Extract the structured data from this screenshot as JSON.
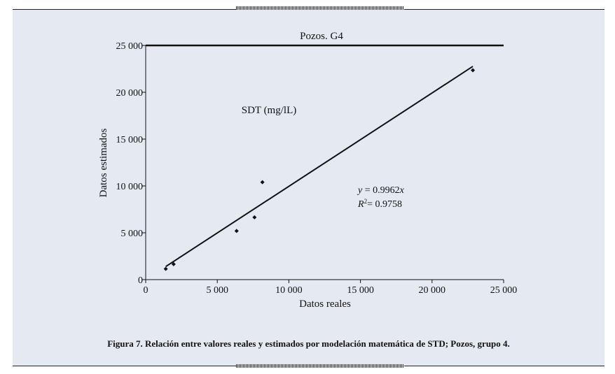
{
  "colors": {
    "panel_bg": "#e4e9f2",
    "ink": "#111111"
  },
  "caption": "Figura 7. Relación entre valores reales y estimados por modelación matemática de STD; Pozos, grupo 4.",
  "chart_data": {
    "type": "scatter",
    "title": "Pozos. G4",
    "subtitle": "SDT (mg/lL)",
    "xlabel": "Datos reales",
    "ylabel": "Datos estimados",
    "xlim": [
      0,
      25000
    ],
    "ylim": [
      0,
      25000
    ],
    "xticks": [
      0,
      5000,
      10000,
      15000,
      20000,
      25000
    ],
    "yticks": [
      0,
      5000,
      10000,
      15000,
      20000,
      25000
    ],
    "xtick_labels": [
      "0",
      "5 000",
      "10 000",
      "15 000",
      "20 000",
      "25 000"
    ],
    "ytick_labels": [
      "0",
      "5 000",
      "10 000",
      "15 000",
      "20 000",
      "25 000"
    ],
    "grid": false,
    "series": [
      {
        "name": "SDT",
        "x": [
          1400,
          1950,
          6350,
          7600,
          8150,
          22850
        ],
        "y": [
          1150,
          1650,
          5200,
          6650,
          10400,
          22350
        ]
      }
    ],
    "trendline": {
      "slope": 0.9962,
      "x_range": [
        1400,
        22850
      ]
    },
    "annotation": {
      "equation": "= 0.9962",
      "r2": "= 0.9758"
    }
  }
}
